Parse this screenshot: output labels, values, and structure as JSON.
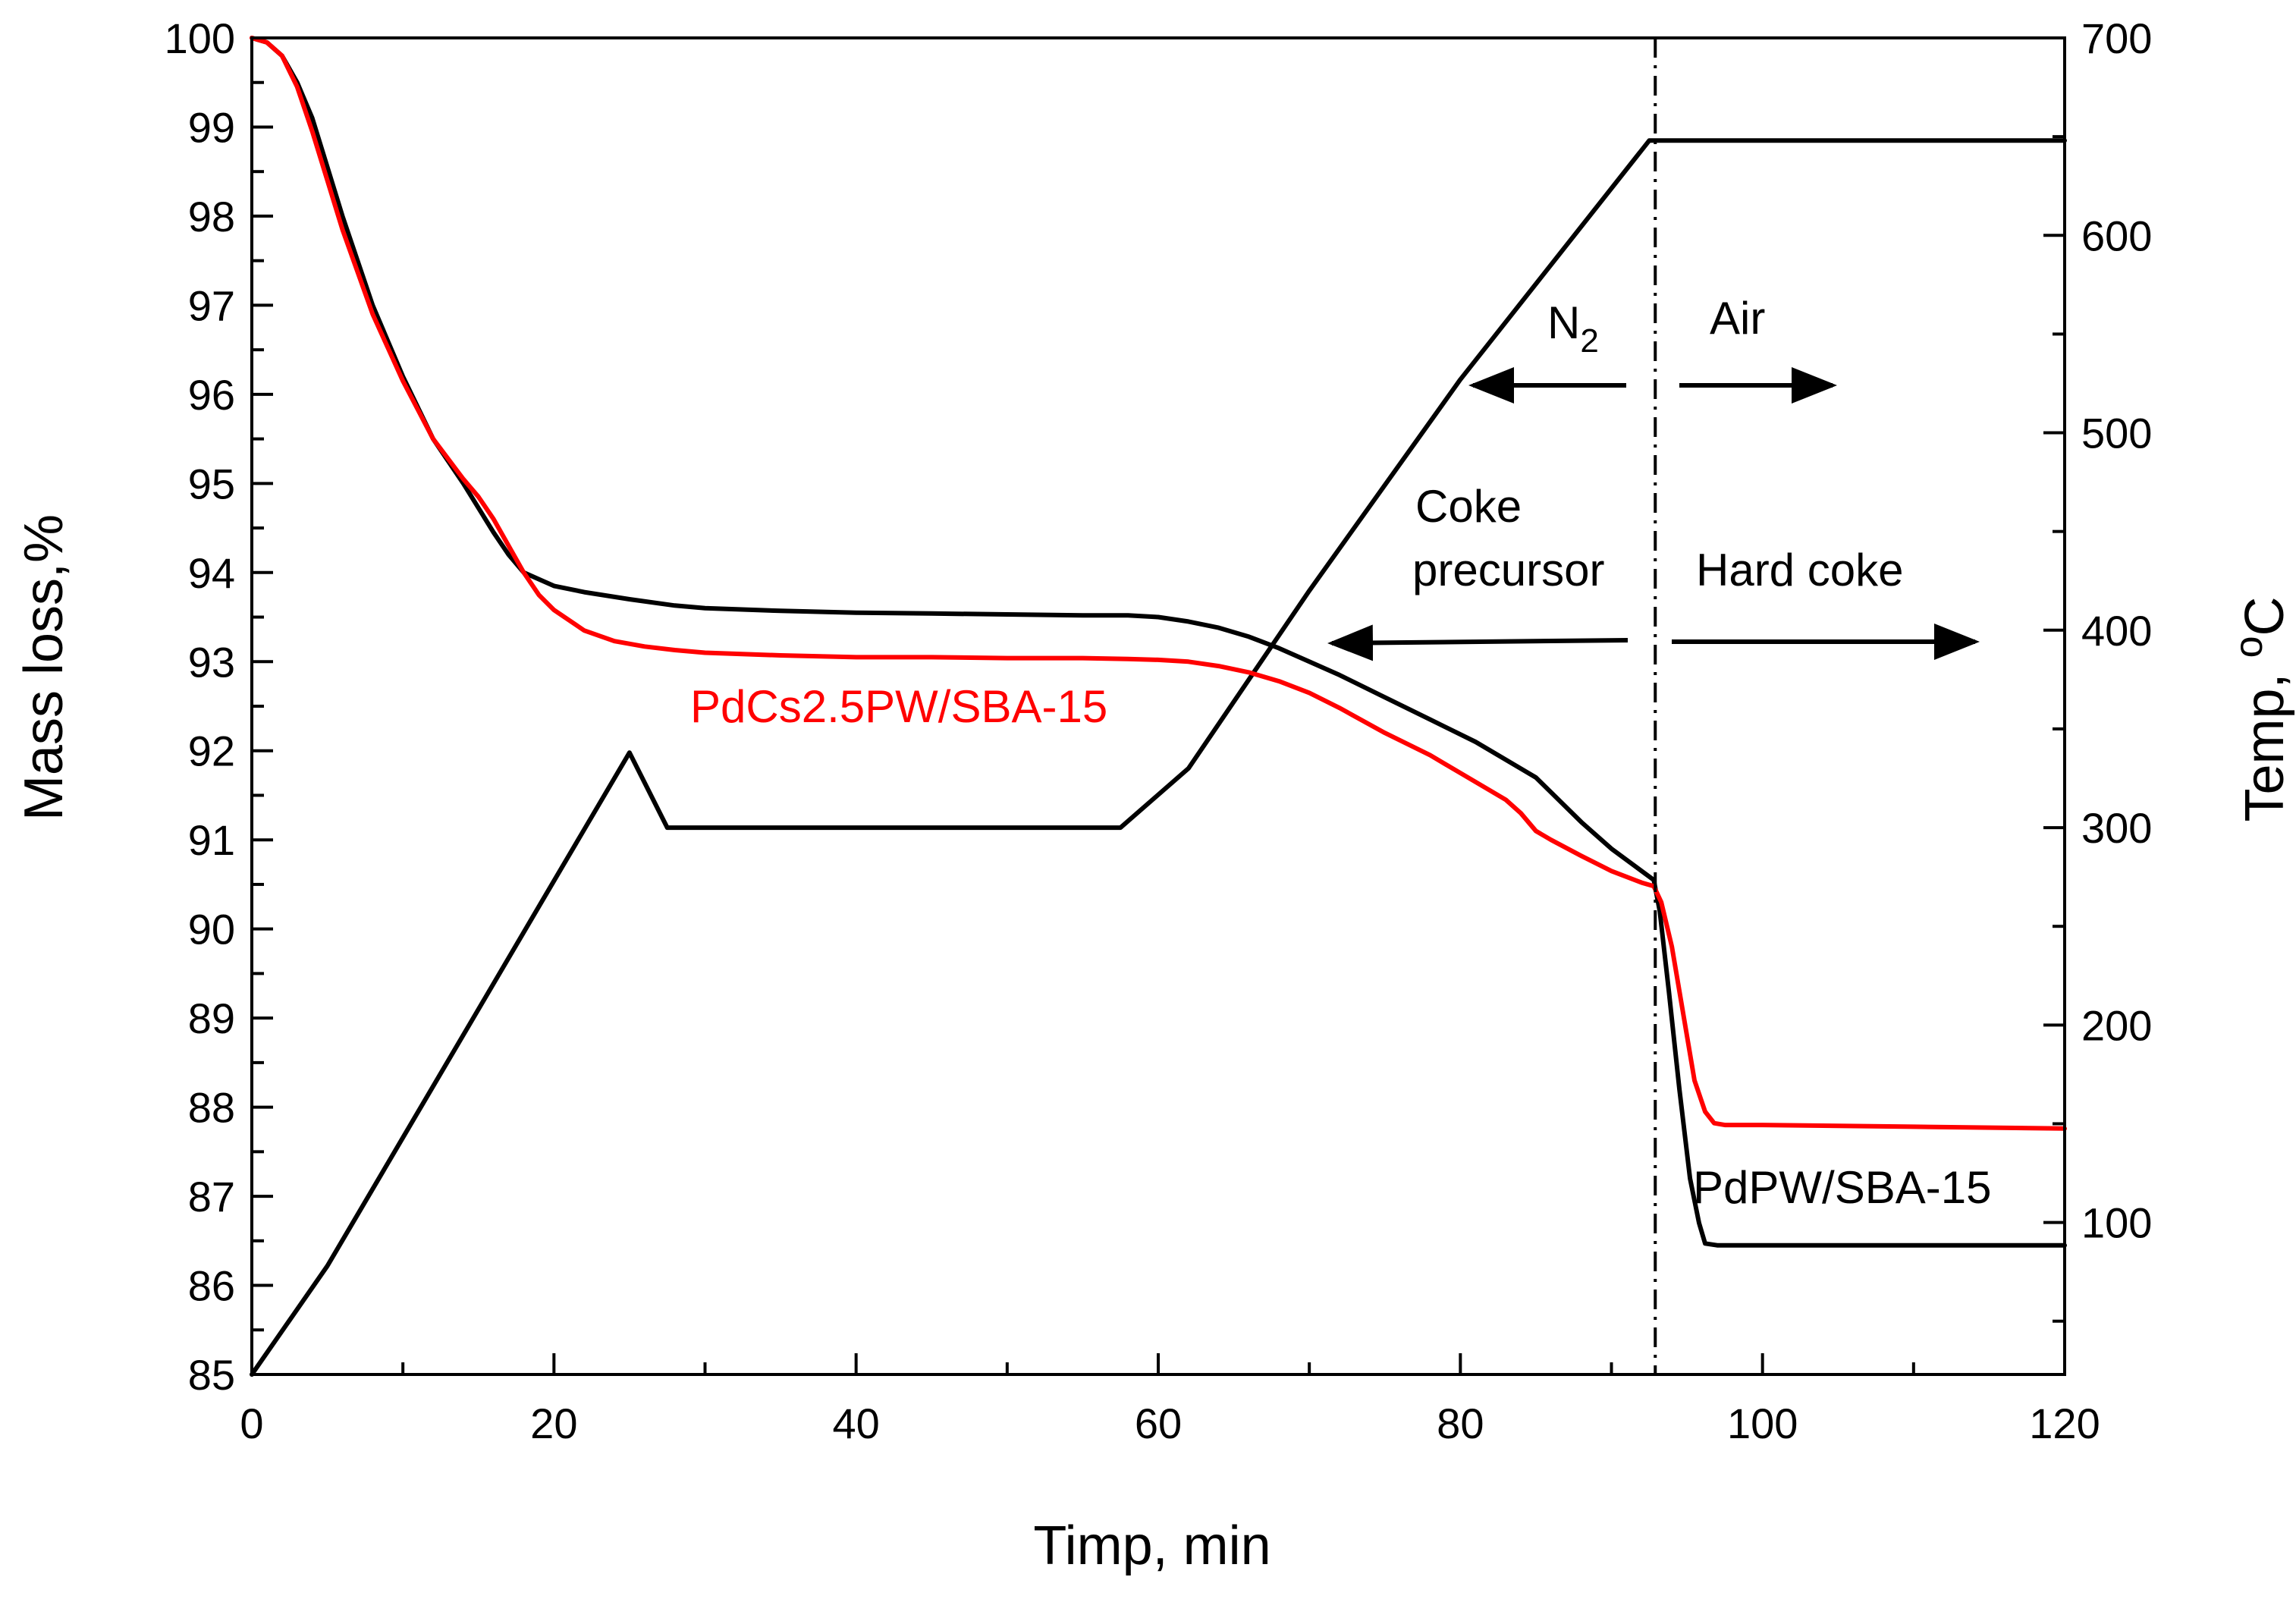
{
  "chart_data": {
    "type": "line",
    "title": "",
    "xlabel": "Timp, min",
    "ylabel_left": "Mass loss,%",
    "ylabel_right_main": "Temp, ",
    "ylabel_right_sup": "o",
    "ylabel_right_unit": "C",
    "xlim": [
      0,
      120
    ],
    "ylim_left": [
      85,
      100
    ],
    "ylim_right": [
      23,
      700
    ],
    "x_ticks": [
      0,
      20,
      40,
      60,
      80,
      100,
      120
    ],
    "x_tick_labels": [
      "0",
      "20",
      "40",
      "60",
      "80",
      "100",
      "120"
    ],
    "y_left_ticks": [
      85,
      86,
      87,
      88,
      89,
      90,
      91,
      92,
      93,
      94,
      95,
      96,
      97,
      98,
      99,
      100
    ],
    "y_left_tick_labels": [
      "85",
      "86",
      "87",
      "88",
      "89",
      "90",
      "91",
      "92",
      "93",
      "94",
      "95",
      "96",
      "97",
      "98",
      "99",
      "100"
    ],
    "y_right_ticks": [
      100,
      200,
      300,
      400,
      500,
      600,
      700
    ],
    "y_right_tick_labels": [
      "100",
      "200",
      "300",
      "400",
      "500",
      "600",
      "700"
    ],
    "switch_time": 92.9,
    "series": [
      {
        "name": "PdPW/SBA-15",
        "axis": "left",
        "color": "#000000",
        "x": [
          0,
          1,
          2,
          3,
          4,
          5,
          6,
          8,
          10,
          12,
          14,
          16,
          17,
          18,
          20,
          22,
          25,
          28,
          30,
          35,
          40,
          45,
          50,
          55,
          58,
          60,
          62,
          64,
          66,
          68,
          70,
          72,
          75,
          78,
          81,
          85,
          88,
          90,
          92,
          92.8,
          93.2,
          93.8,
          94.5,
          95.2,
          95.8,
          96.2,
          97,
          100,
          110,
          120
        ],
        "y": [
          100,
          99.95,
          99.8,
          99.5,
          99.1,
          98.55,
          98.0,
          97.0,
          96.2,
          95.5,
          95.0,
          94.45,
          94.2,
          94.0,
          93.85,
          93.78,
          93.7,
          93.63,
          93.6,
          93.57,
          93.55,
          93.54,
          93.53,
          93.52,
          93.52,
          93.5,
          93.45,
          93.38,
          93.28,
          93.15,
          93.0,
          92.85,
          92.6,
          92.35,
          92.1,
          91.7,
          91.2,
          90.9,
          90.65,
          90.55,
          90.2,
          89.3,
          88.2,
          87.2,
          86.7,
          86.47,
          86.45,
          86.45,
          86.45,
          86.45
        ]
      },
      {
        "name": "PdCs2.5PW/SBA-15",
        "axis": "left",
        "color": "#ff0000",
        "x": [
          0,
          1,
          2,
          3,
          4,
          5,
          6,
          8,
          10,
          12,
          14,
          15,
          16,
          17,
          18,
          19,
          20,
          22,
          24,
          26,
          28,
          30,
          35,
          40,
          45,
          50,
          55,
          58,
          60,
          62,
          64,
          66,
          68,
          70,
          72,
          75,
          78,
          80,
          82,
          83,
          84,
          85,
          86,
          88,
          90,
          92,
          92.8,
          93.3,
          94,
          94.8,
          95.5,
          96.2,
          96.8,
          97.5,
          100,
          110,
          120
        ],
        "y": [
          100,
          99.95,
          99.8,
          99.45,
          98.95,
          98.4,
          97.85,
          96.9,
          96.15,
          95.5,
          95.05,
          94.85,
          94.6,
          94.3,
          94.0,
          93.75,
          93.58,
          93.35,
          93.23,
          93.17,
          93.13,
          93.1,
          93.07,
          93.05,
          93.05,
          93.04,
          93.04,
          93.03,
          93.02,
          93.0,
          92.95,
          92.88,
          92.78,
          92.65,
          92.48,
          92.2,
          91.95,
          91.75,
          91.55,
          91.45,
          91.3,
          91.1,
          91.0,
          90.82,
          90.65,
          90.52,
          90.48,
          90.3,
          89.8,
          89.0,
          88.3,
          87.95,
          87.82,
          87.8,
          87.8,
          87.78,
          87.76
        ]
      },
      {
        "name": "Temperature",
        "axis": "right",
        "color": "#000000",
        "x": [
          0,
          5,
          10,
          15,
          20,
          25,
          27.5,
          57.5,
          62,
          70,
          80,
          92.5,
          120
        ],
        "y": [
          23,
          78,
          143,
          208,
          273,
          338,
          300,
          300,
          330,
          420,
          527,
          648,
          648
        ]
      }
    ],
    "series_labels": {
      "red": "PdCs2.5PW/SBA-15",
      "black": "PdPW/SBA-15"
    },
    "annotations": {
      "n2_main": "N",
      "n2_sub": "2",
      "air": "Air",
      "coke_line1": "Coke",
      "coke_line2": "precursor",
      "hard_coke": "Hard coke"
    }
  }
}
